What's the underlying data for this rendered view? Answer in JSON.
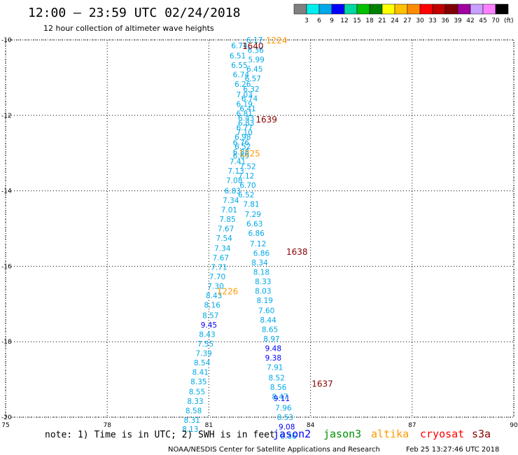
{
  "header": {
    "title": "12:00 – 23:59 UTC 02/24/2018",
    "subtitle": "12 hour collection of altimeter wave heights"
  },
  "color_scale": {
    "labels": [
      "3",
      "6",
      "9",
      "12",
      "15",
      "18",
      "21",
      "24",
      "27",
      "30",
      "33",
      "36",
      "39",
      "42",
      "45",
      "70"
    ],
    "unit": "(ft)",
    "colors": [
      "#808080",
      "#00eeee",
      "#00a8e8",
      "#0000ff",
      "#00d8a0",
      "#00c000",
      "#008000",
      "#ffff00",
      "#ffc000",
      "#ff8c00",
      "#ff0000",
      "#c00000",
      "#800000",
      "#a000a0",
      "#c8a0ff",
      "#ff80ff",
      "#000000"
    ]
  },
  "footer": {
    "note": "note: 1) Time is in UTC; 2) SWH is in feet",
    "credit": "NOAA/NESDIS Center for Satellite Applications and Research",
    "timestamp": "Feb 25 13:27:46 UTC 2018",
    "legend": [
      {
        "name": "jason2",
        "color": "#0000ff"
      },
      {
        "name": "jason3",
        "color": "#009000"
      },
      {
        "name": "altika",
        "color": "#ff9900"
      },
      {
        "name": "cryosat",
        "color": "#ff0000"
      },
      {
        "name": "s3a",
        "color": "#880000"
      }
    ]
  },
  "chart_data": {
    "type": "scatter",
    "xlim": [
      75,
      90
    ],
    "ylim": [
      -20,
      -10
    ],
    "x_ticks": [
      75,
      78,
      81,
      84,
      87,
      90
    ],
    "y_ticks": [
      -10,
      -12,
      -14,
      -16,
      -18,
      -20
    ],
    "x_tick_labels": [
      "75",
      "78",
      "81",
      "84",
      "87",
      "90"
    ],
    "y_tick_labels": [
      "-10",
      "-12",
      "-14",
      "-16",
      "-18",
      "-20"
    ],
    "grid": true,
    "tracks": [
      {
        "label": "1224",
        "label_color": "#ff9900",
        "label_lon": 83.0,
        "label_lat": -10.0
      },
      {
        "label": "1640",
        "label_color": "#880000",
        "label_lon": 82.3,
        "label_lat": -10.15
      },
      {
        "label": "1639",
        "label_color": "#880000",
        "label_lon": 82.7,
        "label_lat": -12.1
      },
      {
        "label": "1225",
        "label_color": "#ff9900",
        "label_lon": 82.2,
        "label_lat": -13.0
      },
      {
        "label": "1638",
        "label_color": "#880000",
        "label_lon": 83.6,
        "label_lat": -15.6
      },
      {
        "label": "1226",
        "label_color": "#ff9900",
        "label_lon": 81.55,
        "label_lat": -16.65
      },
      {
        "label": "1637",
        "label_color": "#880000",
        "label_lon": 84.35,
        "label_lat": -19.1
      }
    ],
    "points": [
      {
        "lon": 82.35,
        "lat": -10.0,
        "swh": "6.17",
        "color": "#00a8e8"
      },
      {
        "lon": 82.38,
        "lat": -10.27,
        "swh": "6.36",
        "color": "#00a8e8"
      },
      {
        "lon": 82.4,
        "lat": -10.52,
        "swh": "5.99",
        "color": "#00a8e8"
      },
      {
        "lon": 82.35,
        "lat": -10.77,
        "swh": "6.45",
        "color": "#00a8e8"
      },
      {
        "lon": 82.3,
        "lat": -11.02,
        "swh": "6.57",
        "color": "#00a8e8"
      },
      {
        "lon": 82.25,
        "lat": -11.3,
        "swh": "6.32",
        "color": "#00a8e8"
      },
      {
        "lon": 82.2,
        "lat": -11.55,
        "swh": "6.74",
        "color": "#00a8e8"
      },
      {
        "lon": 82.15,
        "lat": -11.82,
        "swh": "6.41",
        "color": "#00a8e8"
      },
      {
        "lon": 82.1,
        "lat": -12.07,
        "swh": "6.43",
        "color": "#00a8e8"
      },
      {
        "lon": 82.05,
        "lat": -12.32,
        "swh": "6.77",
        "color": "#00a8e8"
      },
      {
        "lon": 82.0,
        "lat": -12.57,
        "swh": "6.98",
        "color": "#00a8e8"
      },
      {
        "lon": 82.0,
        "lat": -12.82,
        "swh": "6.52",
        "color": "#00a8e8"
      },
      {
        "lon": 81.95,
        "lat": -13.07,
        "swh": "6.69",
        "color": "#00a8e8"
      },
      {
        "lon": 82.15,
        "lat": -13.35,
        "swh": "7.52",
        "color": "#00a8e8"
      },
      {
        "lon": 82.1,
        "lat": -13.6,
        "swh": "7.12",
        "color": "#00a8e8"
      },
      {
        "lon": 82.15,
        "lat": -13.85,
        "swh": "6.70",
        "color": "#00a8e8"
      },
      {
        "lon": 82.1,
        "lat": -14.1,
        "swh": "6.52",
        "color": "#00a8e8"
      },
      {
        "lon": 82.25,
        "lat": -14.35,
        "swh": "7.81",
        "color": "#00a8e8"
      },
      {
        "lon": 82.3,
        "lat": -14.62,
        "swh": "7.29",
        "color": "#00a8e8"
      },
      {
        "lon": 82.35,
        "lat": -14.87,
        "swh": "6.63",
        "color": "#00a8e8"
      },
      {
        "lon": 82.4,
        "lat": -15.12,
        "swh": "6.86",
        "color": "#00a8e8"
      },
      {
        "lon": 82.45,
        "lat": -15.4,
        "swh": "7.12",
        "color": "#00a8e8"
      },
      {
        "lon": 82.55,
        "lat": -15.65,
        "swh": "6.86",
        "color": "#00a8e8"
      },
      {
        "lon": 82.5,
        "lat": -15.9,
        "swh": "8.34",
        "color": "#00a8e8"
      },
      {
        "lon": 82.55,
        "lat": -16.15,
        "swh": "8.18",
        "color": "#00a8e8"
      },
      {
        "lon": 82.6,
        "lat": -16.4,
        "swh": "8.33",
        "color": "#00a8e8"
      },
      {
        "lon": 82.6,
        "lat": -16.65,
        "swh": "8.03",
        "color": "#00a8e8"
      },
      {
        "lon": 82.65,
        "lat": -16.9,
        "swh": "8.19",
        "color": "#00a8e8"
      },
      {
        "lon": 82.7,
        "lat": -17.17,
        "swh": "7.60",
        "color": "#00a8e8"
      },
      {
        "lon": 82.75,
        "lat": -17.42,
        "swh": "8.44",
        "color": "#00a8e8"
      },
      {
        "lon": 82.8,
        "lat": -17.67,
        "swh": "8.65",
        "color": "#00a8e8"
      },
      {
        "lon": 82.85,
        "lat": -17.92,
        "swh": "8.97",
        "color": "#00a8e8"
      },
      {
        "lon": 82.9,
        "lat": -18.17,
        "swh": "9.48",
        "color": "#0000ff"
      },
      {
        "lon": 82.9,
        "lat": -18.42,
        "swh": "9.38",
        "color": "#0000ff"
      },
      {
        "lon": 82.95,
        "lat": -18.67,
        "swh": "7.91",
        "color": "#00a8e8"
      },
      {
        "lon": 83.0,
        "lat": -18.95,
        "swh": "8.52",
        "color": "#00a8e8"
      },
      {
        "lon": 83.05,
        "lat": -19.2,
        "swh": "8.56",
        "color": "#00a8e8"
      },
      {
        "lon": 83.1,
        "lat": -19.45,
        "swh": "8.47",
        "color": "#00a8e8"
      },
      {
        "lon": 83.15,
        "lat": -19.5,
        "swh": "9.11",
        "color": "#0000ff"
      },
      {
        "lon": 83.2,
        "lat": -19.75,
        "swh": "7.96",
        "color": "#00a8e8"
      },
      {
        "lon": 83.25,
        "lat": -20.0,
        "swh": "8.53",
        "color": "#00a8e8"
      },
      {
        "lon": 83.3,
        "lat": -20.25,
        "swh": "9.08",
        "color": "#0000ff"
      },
      {
        "lon": 83.35,
        "lat": -20.5,
        "swh": "8.36",
        "color": "#00a8e8"
      },
      {
        "lon": 81.9,
        "lat": -10.15,
        "swh": "6.74",
        "color": "#00a8e8"
      },
      {
        "lon": 81.85,
        "lat": -10.42,
        "swh": "6.51",
        "color": "#00a8e8"
      },
      {
        "lon": 81.9,
        "lat": -10.67,
        "swh": "6.55",
        "color": "#00a8e8"
      },
      {
        "lon": 81.95,
        "lat": -10.92,
        "swh": "6.74",
        "color": "#00a8e8"
      },
      {
        "lon": 82.0,
        "lat": -11.17,
        "swh": "6.26",
        "color": "#00a8e8"
      },
      {
        "lon": 82.05,
        "lat": -11.45,
        "swh": "7.03",
        "color": "#00a8e8"
      },
      {
        "lon": 82.05,
        "lat": -11.7,
        "swh": "6.19",
        "color": "#00a8e8"
      },
      {
        "lon": 82.05,
        "lat": -11.95,
        "swh": "6.81",
        "color": "#00a8e8"
      },
      {
        "lon": 82.1,
        "lat": -12.2,
        "swh": "6.83",
        "color": "#00a8e8"
      },
      {
        "lon": 82.05,
        "lat": -12.45,
        "swh": "7.10",
        "color": "#00a8e8"
      },
      {
        "lon": 81.95,
        "lat": -12.72,
        "swh": "6.76",
        "color": "#00a8e8"
      },
      {
        "lon": 81.95,
        "lat": -12.97,
        "swh": "6.88",
        "color": "#00a8e8"
      },
      {
        "lon": 81.85,
        "lat": -13.22,
        "swh": "7.41",
        "color": "#00a8e8"
      },
      {
        "lon": 81.8,
        "lat": -13.47,
        "swh": "7.13",
        "color": "#00a8e8"
      },
      {
        "lon": 81.75,
        "lat": -13.72,
        "swh": "7.08",
        "color": "#00a8e8"
      },
      {
        "lon": 81.7,
        "lat": -14.0,
        "swh": "6.83",
        "color": "#00a8e8"
      },
      {
        "lon": 81.65,
        "lat": -14.25,
        "swh": "7.34",
        "color": "#00a8e8"
      },
      {
        "lon": 81.6,
        "lat": -14.5,
        "swh": "7.01",
        "color": "#00a8e8"
      },
      {
        "lon": 81.55,
        "lat": -14.75,
        "swh": "7.85",
        "color": "#00a8e8"
      },
      {
        "lon": 81.5,
        "lat": -15.0,
        "swh": "7.67",
        "color": "#00a8e8"
      },
      {
        "lon": 81.45,
        "lat": -15.25,
        "swh": "7.54",
        "color": "#00a8e8"
      },
      {
        "lon": 81.4,
        "lat": -15.52,
        "swh": "7.34",
        "color": "#00a8e8"
      },
      {
        "lon": 81.35,
        "lat": -15.77,
        "swh": "7.67",
        "color": "#00a8e8"
      },
      {
        "lon": 81.3,
        "lat": -16.02,
        "swh": "7.71",
        "color": "#00a8e8"
      },
      {
        "lon": 81.25,
        "lat": -16.27,
        "swh": "7.70",
        "color": "#00a8e8"
      },
      {
        "lon": 81.2,
        "lat": -16.52,
        "swh": "7.30",
        "color": "#00a8e8"
      },
      {
        "lon": 81.15,
        "lat": -16.77,
        "swh": "8.43",
        "color": "#00a8e8"
      },
      {
        "lon": 81.1,
        "lat": -17.02,
        "swh": "8.16",
        "color": "#00a8e8"
      },
      {
        "lon": 81.05,
        "lat": -17.3,
        "swh": "8.57",
        "color": "#00a8e8"
      },
      {
        "lon": 81.0,
        "lat": -17.55,
        "swh": "9.45",
        "color": "#0000ff"
      },
      {
        "lon": 80.95,
        "lat": -17.8,
        "swh": "8.43",
        "color": "#00a8e8"
      },
      {
        "lon": 80.9,
        "lat": -18.05,
        "swh": "7.55",
        "color": "#00a8e8"
      },
      {
        "lon": 80.85,
        "lat": -18.3,
        "swh": "7.39",
        "color": "#00a8e8"
      },
      {
        "lon": 80.8,
        "lat": -18.55,
        "swh": "8.54",
        "color": "#00a8e8"
      },
      {
        "lon": 80.75,
        "lat": -18.8,
        "swh": "8.41",
        "color": "#00a8e8"
      },
      {
        "lon": 80.7,
        "lat": -19.05,
        "swh": "8.35",
        "color": "#00a8e8"
      },
      {
        "lon": 80.65,
        "lat": -19.32,
        "swh": "8.55",
        "color": "#00a8e8"
      },
      {
        "lon": 80.6,
        "lat": -19.57,
        "swh": "8.33",
        "color": "#00a8e8"
      },
      {
        "lon": 80.55,
        "lat": -19.82,
        "swh": "8.58",
        "color": "#00a8e8"
      },
      {
        "lon": 80.5,
        "lat": -20.07,
        "swh": "8.31",
        "color": "#00a8e8"
      },
      {
        "lon": 80.45,
        "lat": -20.32,
        "swh": "8.13",
        "color": "#00a8e8"
      }
    ]
  }
}
